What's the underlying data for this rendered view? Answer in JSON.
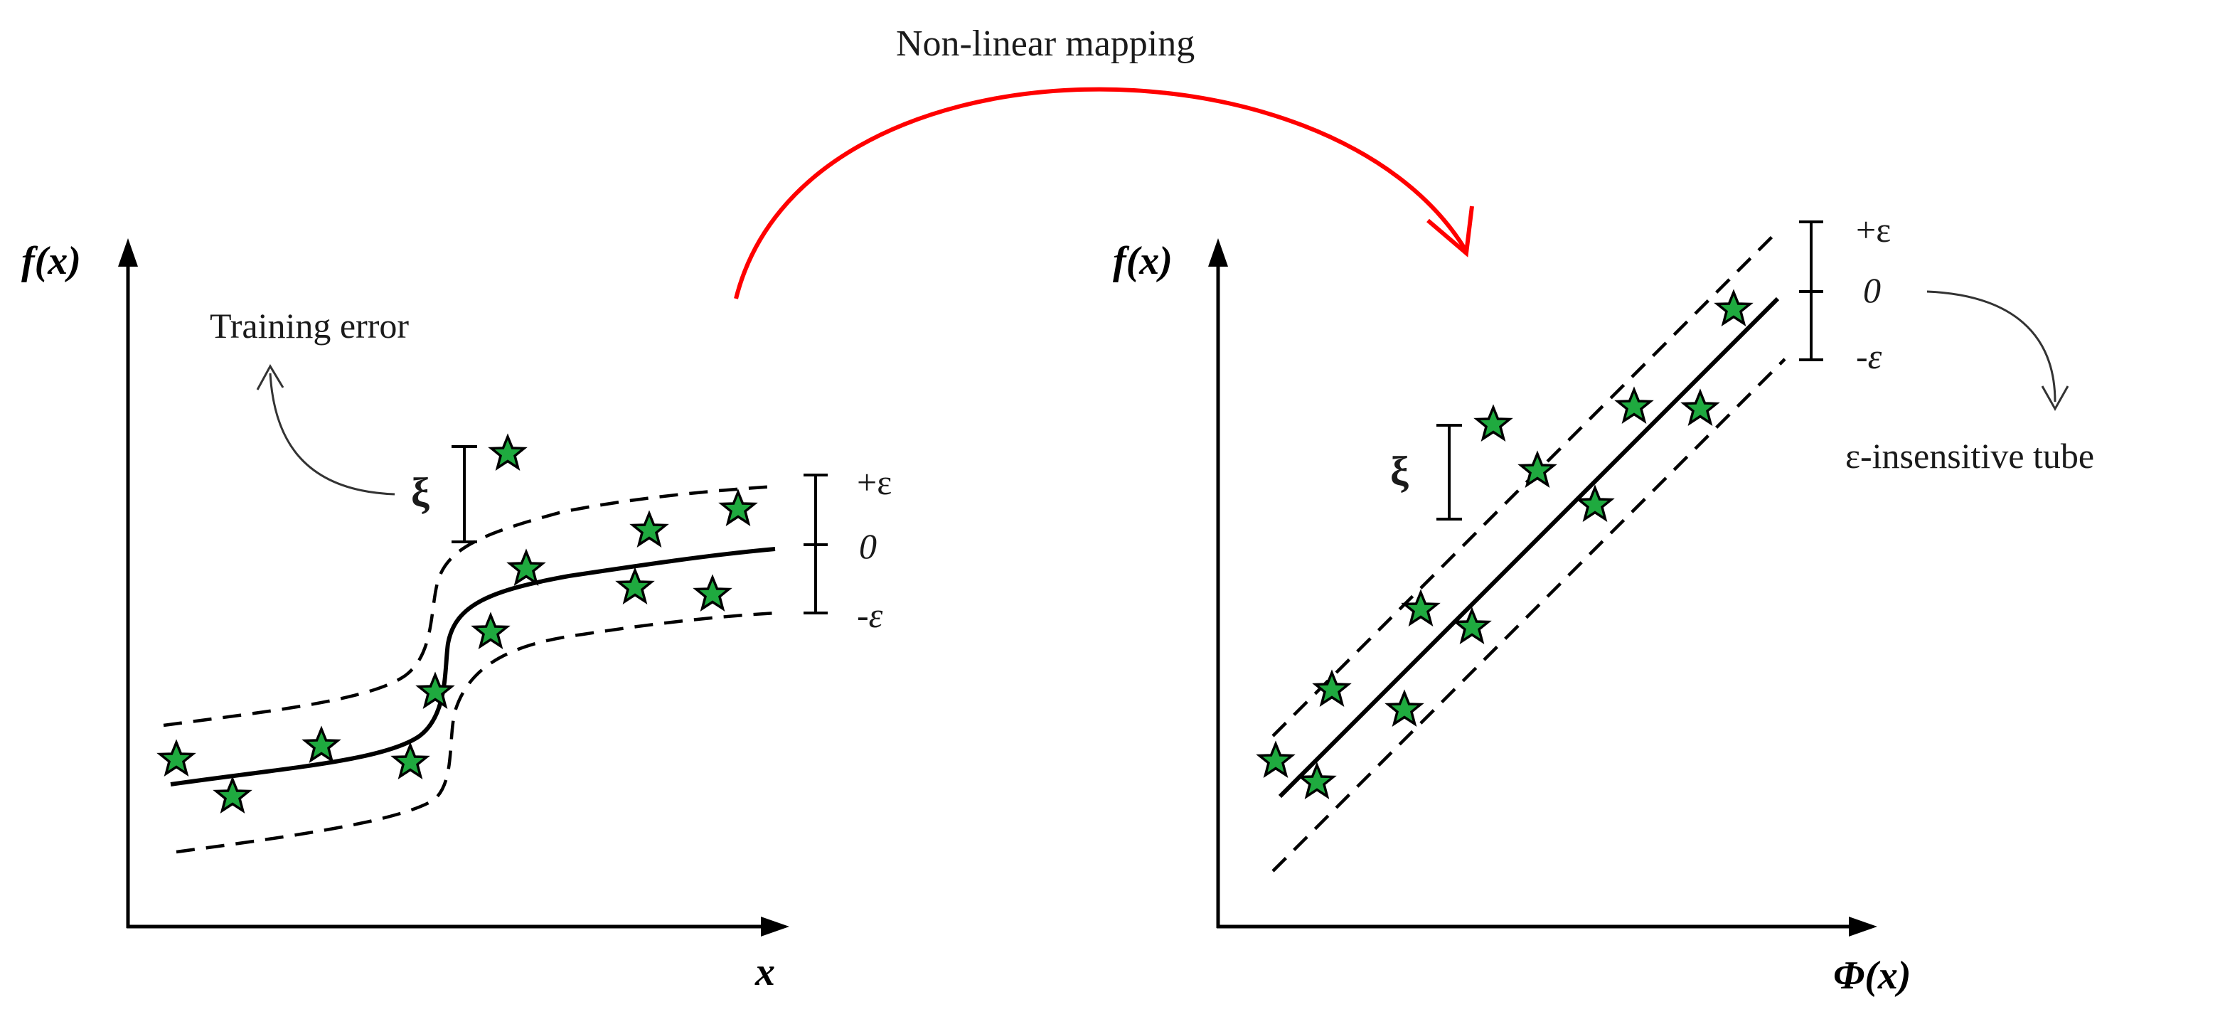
{
  "mapping": {
    "label": "Non-linear mapping",
    "arrow_color": "#ff0000"
  },
  "left_panel": {
    "y_axis_label": "f(x)",
    "x_axis_label": "x",
    "training_error_label": "Training error",
    "xi_label": "ξ",
    "plus_eps_label": "+ε",
    "zero_label": "0",
    "minus_eps_label": "-ε"
  },
  "right_panel": {
    "y_axis_label": "f(x)",
    "x_axis_label": "Φ(x)",
    "xi_label": "ξ",
    "plus_eps_label": "+ε",
    "zero_label": "0",
    "minus_eps_label": "-ε",
    "tube_label": "ε-insensitive tube"
  },
  "colors": {
    "star_fill": "#1faa3f",
    "line": "#000000"
  }
}
